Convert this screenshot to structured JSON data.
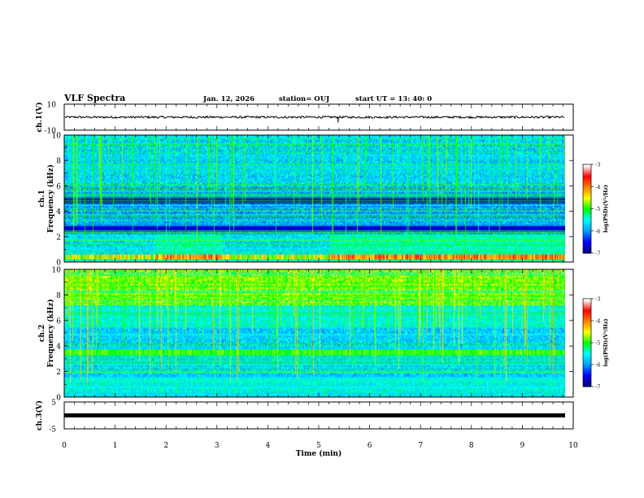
{
  "header": {
    "title": "VLF Spectra",
    "date": "Jan. 12, 2026",
    "station": "station= OUJ",
    "start": "start  UT =  13: 40: 0"
  },
  "chart_data": {
    "type": "heatmap",
    "x_axis": {
      "label": "Time (min)",
      "range": [
        0,
        10
      ],
      "ticks": [
        "0",
        "1",
        "2",
        "3",
        "4",
        "5",
        "6",
        "7",
        "8",
        "9",
        "10"
      ],
      "data_end": 9.84
    },
    "panels": [
      {
        "id": "ch1",
        "type": "line",
        "ylabel": "ch.1(V)",
        "ylim": [
          -10,
          10
        ],
        "yticks": [
          "10",
          "-10"
        ],
        "baseline": 0,
        "spike": {
          "x": 5.38,
          "y_min": -4
        }
      },
      {
        "id": "ch1-spectrogram",
        "type": "heatmap",
        "ylabel_line1": "ch.1",
        "ylabel_line2": "Frequency (kHz)",
        "ylim": [
          0,
          10
        ],
        "yticks": [
          "0",
          "2",
          "4",
          "6",
          "8",
          "10"
        ],
        "scale": "log10 PSD",
        "strong_band_khz": [
          0.2,
          0.6
        ],
        "elevated_intervals_min": [
          [
            1.8,
            3.1
          ],
          [
            5.2,
            9.84
          ]
        ],
        "dark_bands_khz": [
          [
            4.6,
            5.1
          ],
          [
            2.4,
            2.9
          ]
        ],
        "colorbar": {
          "label": "log(PSD)(V²/Hz)",
          "range": [
            -7,
            -3
          ],
          "ticks": [
            "-3",
            "-4",
            "-5",
            "-6",
            "-7"
          ]
        }
      },
      {
        "id": "ch2-spectrogram",
        "type": "heatmap",
        "ylabel_line1": "ch.2",
        "ylabel_line2": "Frequency (kHz)",
        "ylim": [
          0,
          10
        ],
        "yticks": [
          "0",
          "2",
          "4",
          "6",
          "8",
          "10"
        ],
        "scale": "log10 PSD",
        "strong_band_khz": [
          7.2,
          10
        ],
        "secondary_band_khz": [
          3.3,
          3.7
        ],
        "colorbar": {
          "label": "log(PSD)(V²/Hz)",
          "range": [
            -7,
            -3
          ],
          "ticks": [
            "-3",
            "-4",
            "-5",
            "-6",
            "-7"
          ]
        }
      },
      {
        "id": "ch3",
        "type": "line",
        "ylabel": "ch.3(V)",
        "ylim": [
          -5,
          5
        ],
        "yticks": [
          "5",
          "-5"
        ],
        "baseline": 0
      }
    ],
    "colormap": [
      "#000080",
      "#0000ff",
      "#00a0ff",
      "#00ffff",
      "#00ff00",
      "#ffff00",
      "#ff8000",
      "#ff0000",
      "#ffffff"
    ]
  }
}
